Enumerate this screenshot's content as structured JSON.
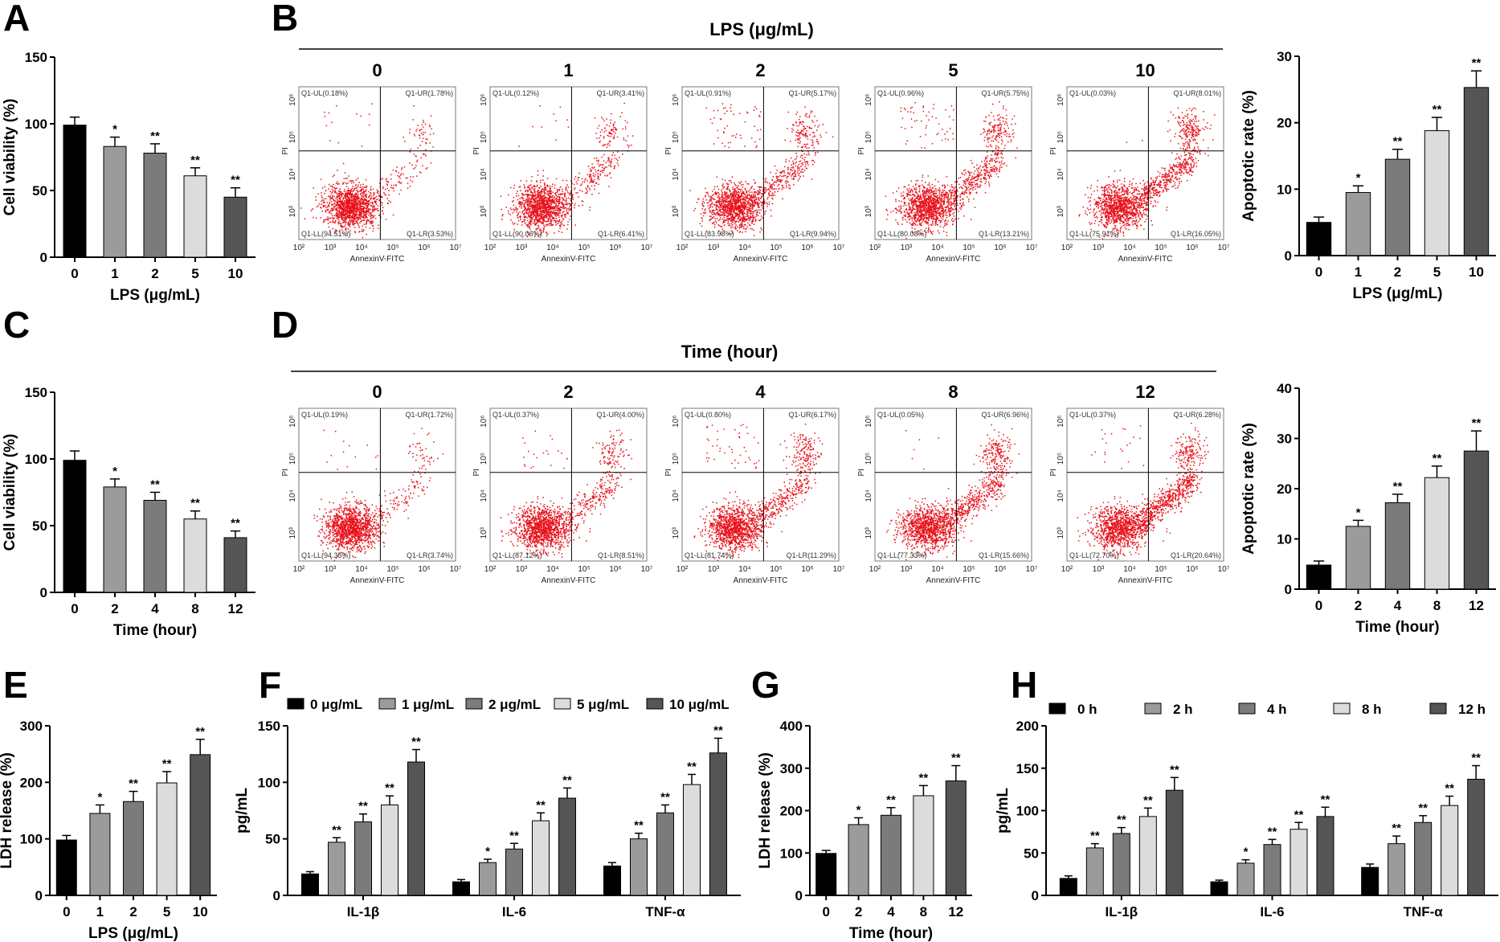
{
  "colors": {
    "c0": "#000000",
    "c1": "#9b9b9b",
    "c2": "#7b7b7b",
    "c3": "#dcdcdc",
    "c4": "#555555",
    "dots": "#e8111a",
    "gates": "#000000"
  },
  "labels": {
    "panel_A": "A",
    "panel_B": "B",
    "panel_C": "C",
    "panel_D": "D",
    "panel_E": "E",
    "panel_F": "F",
    "panel_G": "G",
    "panel_H": "H",
    "b_title": "LPS (μg/mL)",
    "d_title": "Time (hour)",
    "fc_xlabel": "AnnexinV-FITC",
    "fc_ylabel": "PI"
  },
  "chart_data": [
    {
      "id": "A",
      "type": "bar",
      "categories": [
        "0",
        "1",
        "2",
        "5",
        "10"
      ],
      "values": [
        99,
        83,
        78,
        61,
        45
      ],
      "errors": [
        6,
        7,
        7,
        6,
        7
      ],
      "significance": [
        "",
        "*",
        "**",
        "**",
        "**"
      ],
      "yticks": [
        "0",
        "50",
        "100",
        "150"
      ],
      "ylim": [
        0,
        150
      ],
      "ylabel": "Cell viability (%)",
      "xlabel": "LPS (μg/mL)"
    },
    {
      "id": "B_bar",
      "type": "bar",
      "categories": [
        "0",
        "1",
        "2",
        "5",
        "10"
      ],
      "values": [
        5.0,
        9.5,
        14.5,
        18.8,
        25.3
      ],
      "errors": [
        0.8,
        1.0,
        1.5,
        2.0,
        2.5
      ],
      "significance": [
        "",
        "*",
        "**",
        "**",
        "**"
      ],
      "yticks": [
        "0",
        "10",
        "20",
        "30"
      ],
      "ylim": [
        0,
        30
      ],
      "ylabel": "Apoptotic rate (%)",
      "xlabel": "LPS (μg/mL)"
    },
    {
      "id": "C",
      "type": "bar",
      "categories": [
        "0",
        "2",
        "4",
        "8",
        "12"
      ],
      "values": [
        99,
        79,
        69,
        55,
        41
      ],
      "errors": [
        7,
        6,
        6,
        6,
        5
      ],
      "significance": [
        "",
        "*",
        "**",
        "**",
        "**"
      ],
      "yticks": [
        "0",
        "50",
        "100",
        "150"
      ],
      "ylim": [
        0,
        150
      ],
      "ylabel": "Cell viability (%)",
      "xlabel": "Time (hour)"
    },
    {
      "id": "D_bar",
      "type": "bar",
      "categories": [
        "0",
        "2",
        "4",
        "8",
        "12"
      ],
      "values": [
        4.8,
        12.5,
        17.2,
        22.2,
        27.5
      ],
      "errors": [
        0.8,
        1.2,
        1.7,
        2.3,
        4.0
      ],
      "significance": [
        "",
        "*",
        "**",
        "**",
        "**"
      ],
      "yticks": [
        "0",
        "10",
        "20",
        "30",
        "40"
      ],
      "ylim": [
        0,
        40
      ],
      "ylabel": "Apoptotic rate (%)",
      "xlabel": "Time (hour)"
    },
    {
      "id": "E",
      "type": "bar",
      "categories": [
        "0",
        "1",
        "2",
        "5",
        "10"
      ],
      "values": [
        98,
        145,
        166,
        199,
        249
      ],
      "errors": [
        8,
        15,
        18,
        20,
        27
      ],
      "significance": [
        "",
        "*",
        "**",
        "**",
        "**"
      ],
      "yticks": [
        "0",
        "100",
        "200",
        "300"
      ],
      "ylim": [
        0,
        300
      ],
      "ylabel": "LDH release (%)",
      "xlabel": "LPS (μg/mL)"
    },
    {
      "id": "F",
      "type": "bar",
      "categories": [
        "IL-1β",
        "IL-6",
        "TNF-α"
      ],
      "series": [
        {
          "name": "0 μg/mL",
          "values": [
            19,
            12,
            26
          ],
          "errors": [
            2,
            2,
            3
          ]
        },
        {
          "name": "1 μg/mL",
          "values": [
            47,
            29,
            50
          ],
          "errors": [
            4,
            3,
            5
          ]
        },
        {
          "name": "2 μg/mL",
          "values": [
            65,
            41,
            73
          ],
          "errors": [
            7,
            5,
            7
          ]
        },
        {
          "name": "5 μg/mL",
          "values": [
            80,
            66,
            98
          ],
          "errors": [
            8,
            7,
            9
          ]
        },
        {
          "name": "10 μg/mL",
          "values": [
            118,
            86,
            126
          ],
          "errors": [
            11,
            9,
            13
          ]
        }
      ],
      "significance": [
        [
          "",
          "**",
          "**",
          "**",
          "**"
        ],
        [
          "",
          "*",
          "**",
          "**",
          "**"
        ],
        [
          "",
          "**",
          "**",
          "**",
          "**"
        ]
      ],
      "yticks": [
        "0",
        "50",
        "100",
        "150"
      ],
      "ylim": [
        0,
        150
      ],
      "ylabel": "pg/mL",
      "xlabel": ""
    },
    {
      "id": "G",
      "type": "bar",
      "categories": [
        "0",
        "2",
        "4",
        "8",
        "12"
      ],
      "values": [
        99,
        167,
        189,
        235,
        270
      ],
      "errors": [
        7,
        16,
        18,
        24,
        36
      ],
      "significance": [
        "",
        "*",
        "**",
        "**",
        "**"
      ],
      "yticks": [
        "0",
        "100",
        "200",
        "300",
        "400"
      ],
      "ylim": [
        0,
        400
      ],
      "ylabel": "LDH release (%)",
      "xlabel": "Time (hour)"
    },
    {
      "id": "H",
      "type": "bar",
      "categories": [
        "IL-1β",
        "IL-6",
        "TNF-α"
      ],
      "series": [
        {
          "name": "0 h",
          "values": [
            20,
            16,
            33
          ],
          "errors": [
            3,
            2,
            4
          ]
        },
        {
          "name": "2 h",
          "values": [
            56,
            38,
            61
          ],
          "errors": [
            5,
            4,
            9
          ]
        },
        {
          "name": "4 h",
          "values": [
            73,
            60,
            86
          ],
          "errors": [
            7,
            6,
            8
          ]
        },
        {
          "name": "8 h",
          "values": [
            93,
            78,
            106
          ],
          "errors": [
            10,
            8,
            11
          ]
        },
        {
          "name": "12 h",
          "values": [
            124,
            93,
            137
          ],
          "errors": [
            15,
            11,
            16
          ]
        }
      ],
      "significance": [
        [
          "",
          "**",
          "**",
          "**",
          "**"
        ],
        [
          "",
          "*",
          "**",
          "**",
          "**"
        ],
        [
          "",
          "**",
          "**",
          "**",
          "**"
        ]
      ],
      "yticks": [
        "0",
        "50",
        "100",
        "150",
        "200"
      ],
      "ylim": [
        0,
        200
      ],
      "ylabel": "pg/mL",
      "xlabel": ""
    },
    {
      "id": "B_flow",
      "type": "scatter",
      "title": "LPS (μg/mL)",
      "xaxis_ticks": [
        "10²",
        "10³",
        "10⁴",
        "10⁵",
        "10⁶",
        "10⁷"
      ],
      "yaxis_ticks": [
        "10³",
        "10⁴",
        "10⁵",
        "10⁶"
      ],
      "plots": [
        {
          "label": "0",
          "UL": "Q1-UL(0.18%)",
          "UR": "Q1-UR(1.78%)",
          "LL": "Q1-LL(94.51%)",
          "LR": "Q1-LR(3.53%)"
        },
        {
          "label": "1",
          "UL": "Q1-UL(0.12%)",
          "UR": "Q1-UR(3.41%)",
          "LL": "Q1-LL(90.06%)",
          "LR": "Q1-LR(6.41%)"
        },
        {
          "label": "2",
          "UL": "Q1-UL(0.91%)",
          "UR": "Q1-UR(5.17%)",
          "LL": "Q1-LL(83.98%)",
          "LR": "Q1-LR(9.94%)"
        },
        {
          "label": "5",
          "UL": "Q1-UL(0.96%)",
          "UR": "Q1-UR(5.75%)",
          "LL": "Q1-LL(80.08%)",
          "LR": "Q1-LR(13.21%)"
        },
        {
          "label": "10",
          "UL": "Q1-UL(0.03%)",
          "UR": "Q1-UR(8.01%)",
          "LL": "Q1-LL(75.91%)",
          "LR": "Q1-LR(16.05%)"
        }
      ]
    },
    {
      "id": "D_flow",
      "type": "scatter",
      "title": "Time (hour)",
      "xaxis_ticks": [
        "10²",
        "10³",
        "10⁴",
        "10⁵",
        "10⁶",
        "10⁷"
      ],
      "yaxis_ticks": [
        "10³",
        "10⁴",
        "10⁵",
        "10⁶"
      ],
      "plots": [
        {
          "label": "0",
          "UL": "Q1-UL(0.19%)",
          "UR": "Q1-UR(1.72%)",
          "LL": "Q1-LL(94.35%)",
          "LR": "Q1-LR(3.74%)"
        },
        {
          "label": "2",
          "UL": "Q1-UL(0.37%)",
          "UR": "Q1-UR(4.00%)",
          "LL": "Q1-LL(87.12%)",
          "LR": "Q1-LR(8.51%)"
        },
        {
          "label": "4",
          "UL": "Q1-UL(0.80%)",
          "UR": "Q1-UR(6.17%)",
          "LL": "Q1-LL(81.74%)",
          "LR": "Q1-LR(11.29%)"
        },
        {
          "label": "8",
          "UL": "Q1-UL(0.05%)",
          "UR": "Q1-UR(6.96%)",
          "LL": "Q1-LL(77.33%)",
          "LR": "Q1-LR(15.66%)"
        },
        {
          "label": "12",
          "UL": "Q1-UL(0.37%)",
          "UR": "Q1-UR(6.28%)",
          "LL": "Q1-LL(72.70%)",
          "LR": "Q1-LR(20.64%)"
        }
      ]
    }
  ]
}
